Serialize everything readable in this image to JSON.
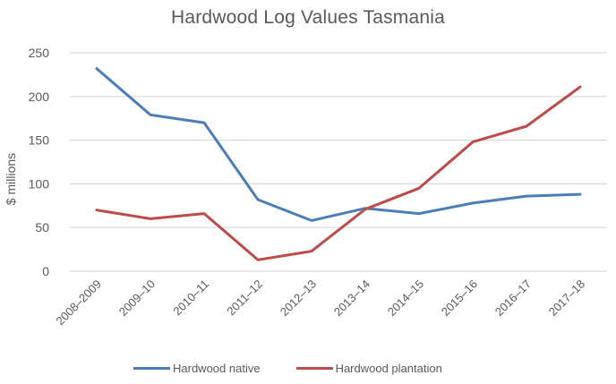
{
  "chart_data": {
    "type": "line",
    "title": "Hardwood Log Values Tasmania",
    "xlabel": "",
    "ylabel": "$ millions",
    "ylim": [
      0,
      250
    ],
    "yticks": [
      0,
      50,
      100,
      150,
      200,
      250
    ],
    "grid": true,
    "legend_position": "bottom",
    "categories": [
      "2008–2009",
      "2009–10",
      "2010–11",
      "2011–12",
      "2012–13",
      "2013–14",
      "2014–15",
      "2015–16",
      "2016–17",
      "2017–18"
    ],
    "series": [
      {
        "name": "Hardwood native",
        "color": "#4A7EBB",
        "values": [
          232,
          179,
          170,
          82,
          58,
          72,
          66,
          78,
          86,
          88
        ]
      },
      {
        "name": "Hardwood plantation",
        "color": "#BE4B48",
        "values": [
          70,
          60,
          66,
          13,
          23,
          71,
          95,
          148,
          166,
          211
        ]
      }
    ]
  },
  "colors": {
    "gridline": "#D9D9D9",
    "text": "#595959"
  }
}
